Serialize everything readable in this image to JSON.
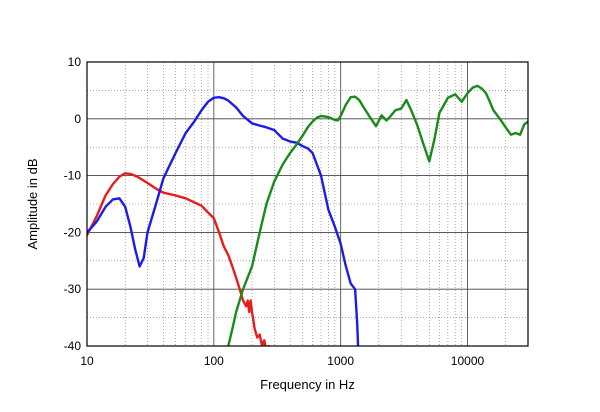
{
  "chart_data": {
    "type": "line",
    "title": "",
    "xlabel": "Frequency in Hz",
    "ylabel": "Amplitude in dB",
    "x_scale": "log",
    "xlim": [
      10,
      30000
    ],
    "ylim": [
      -40,
      10
    ],
    "x_ticks": [
      10,
      100,
      1000,
      10000
    ],
    "x_tick_labels": [
      "10",
      "100",
      "1000",
      "10000"
    ],
    "y_ticks": [
      10,
      0,
      -10,
      -20,
      -30,
      -40
    ],
    "y_tick_labels": [
      "10",
      "0",
      "-10",
      "-20",
      "-30",
      "-40"
    ],
    "y_minor_step": 5,
    "grid": true,
    "legend": "none",
    "series": [
      {
        "color": "#e81c1c",
        "x": [
          10,
          12,
          14,
          16,
          18,
          20,
          22,
          25,
          30,
          35,
          40,
          50,
          60,
          70,
          80,
          90,
          100,
          110,
          120,
          130,
          140,
          150,
          160,
          170,
          180,
          185,
          190,
          195,
          200,
          210,
          220,
          230,
          240,
          250,
          260,
          270,
          280,
          290,
          300
        ],
        "y": [
          -20.5,
          -17,
          -13.5,
          -11.5,
          -10.2,
          -9.6,
          -9.7,
          -10.2,
          -11.3,
          -12.3,
          -13,
          -13.5,
          -14,
          -14.7,
          -15.3,
          -16.5,
          -17.5,
          -20,
          -22.5,
          -24,
          -26,
          -28,
          -30,
          -32,
          -33,
          -32,
          -34,
          -32,
          -34,
          -37,
          -38.5,
          -38,
          -40,
          -39,
          -41,
          -40,
          -42,
          -43,
          -45
        ]
      },
      {
        "color": "#1c1ce8",
        "x": [
          10,
          11,
          12,
          14,
          16,
          18,
          20,
          22,
          24,
          26,
          28,
          30,
          35,
          40,
          50,
          60,
          70,
          80,
          90,
          100,
          110,
          120,
          130,
          150,
          170,
          200,
          230,
          260,
          300,
          350,
          400,
          450,
          500,
          550,
          600,
          700,
          800,
          900,
          1000,
          1100,
          1200,
          1300,
          1350,
          1400
        ],
        "y": [
          -20,
          -19,
          -18,
          -15.5,
          -14.2,
          -14,
          -15.5,
          -19,
          -23,
          -26,
          -24.5,
          -20,
          -15,
          -10.5,
          -6,
          -2.5,
          -0.5,
          1.5,
          3,
          3.7,
          3.8,
          3.6,
          3.2,
          2,
          0.5,
          -0.8,
          -1.2,
          -1.5,
          -2,
          -3.5,
          -4,
          -4.2,
          -4.8,
          -5.2,
          -6,
          -10,
          -16,
          -19,
          -22,
          -26,
          -29,
          -30,
          -36,
          -45
        ]
      },
      {
        "color": "#1a8a1a",
        "x": [
          130,
          140,
          150,
          170,
          200,
          230,
          260,
          300,
          350,
          400,
          450,
          500,
          550,
          600,
          650,
          700,
          800,
          900,
          950,
          1000,
          1100,
          1200,
          1300,
          1400,
          1500,
          1700,
          1900,
          2100,
          2300,
          2500,
          2700,
          3000,
          3300,
          3600,
          4000,
          4500,
          5000,
          5500,
          6000,
          7000,
          8000,
          9000,
          10000,
          11000,
          12000,
          13000,
          14000,
          15000,
          16000,
          18000,
          20000,
          22000,
          24000,
          26000,
          28000,
          30000
        ],
        "y": [
          -40,
          -37,
          -34,
          -30,
          -26,
          -20,
          -15,
          -11,
          -8,
          -6,
          -4.5,
          -3,
          -1.5,
          -0.5,
          0.2,
          0.5,
          0.3,
          -0.2,
          -0.3,
          0.5,
          2.5,
          3.8,
          3.9,
          3.3,
          2.2,
          0.3,
          -1.3,
          0.6,
          -0.3,
          0.6,
          1.5,
          1.8,
          3.3,
          1.5,
          -1,
          -4.5,
          -7.5,
          -3.5,
          1,
          3.7,
          4.3,
          3,
          4.5,
          5.5,
          5.8,
          5.3,
          4.5,
          3,
          1.5,
          0,
          -1.5,
          -2.8,
          -2.5,
          -2.8,
          -1,
          -0.5
        ]
      }
    ]
  }
}
